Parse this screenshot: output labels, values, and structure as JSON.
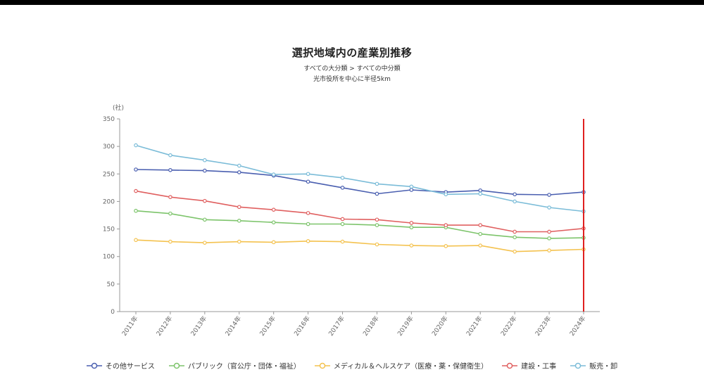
{
  "chart_data": {
    "type": "line",
    "title": "選択地域内の産業別推移",
    "subtitle": "すべての大分類 > すべての中分類",
    "subtitle2": "光市役所を中心に半径5km",
    "ylabel": "(社)",
    "xlabel": "",
    "ylim": [
      0,
      350
    ],
    "yticks": [
      "0",
      "50",
      "100",
      "150",
      "200",
      "250",
      "300",
      "350"
    ],
    "categories": [
      "2011年",
      "2012年",
      "2013年",
      "2014年",
      "2015年",
      "2016年",
      "2017年",
      "2018年",
      "2019年",
      "2020年",
      "2021年",
      "2022年",
      "2023年",
      "2024年"
    ],
    "marker_year": "2024年",
    "marker_color": "#e02020",
    "grid": false,
    "legend_position": "bottom",
    "series": [
      {
        "name": "その他サービス",
        "color": "#4a5fb0",
        "values": [
          258,
          257,
          256,
          253,
          247,
          236,
          225,
          214,
          221,
          217,
          220,
          213,
          212,
          217
        ]
      },
      {
        "name": "パブリック（官公庁・団体・福祉）",
        "color": "#7dc46b",
        "values": [
          183,
          178,
          167,
          165,
          162,
          159,
          159,
          157,
          153,
          153,
          141,
          135,
          133,
          134
        ]
      },
      {
        "name": "メディカル＆ヘルスケア（医療・薬・保健衛生）",
        "color": "#f4c24f",
        "values": [
          130,
          127,
          125,
          127,
          126,
          128,
          127,
          122,
          120,
          119,
          120,
          109,
          111,
          113
        ]
      },
      {
        "name": "建設・工事",
        "color": "#e06060",
        "values": [
          219,
          208,
          201,
          190,
          185,
          179,
          168,
          167,
          161,
          157,
          157,
          145,
          145,
          151
        ]
      },
      {
        "name": "販売・卸",
        "color": "#7bbcd8",
        "values": [
          302,
          284,
          275,
          265,
          249,
          250,
          243,
          232,
          227,
          213,
          214,
          200,
          189,
          182
        ]
      }
    ]
  }
}
